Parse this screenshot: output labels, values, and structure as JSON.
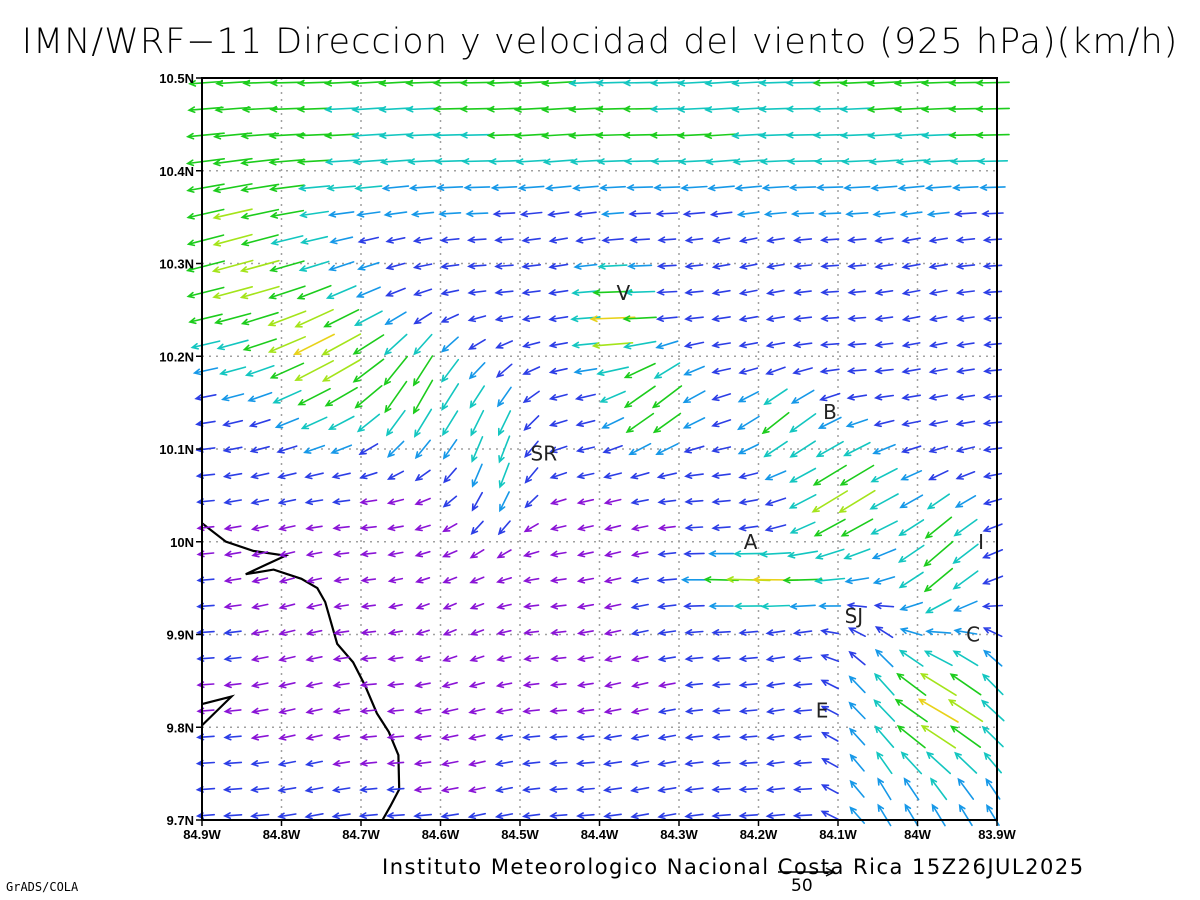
{
  "title": "IMN/WRF−11 Direccion y velocidad del viento (925 hPa)(km/h)",
  "footer": "Instituto Meteorologico Nacional Costa Rica  15Z26JUL2025",
  "software": "GrADS/COLA",
  "reference_vector": {
    "value": "50",
    "speed_kmh": 50
  },
  "map": {
    "lon_range": [
      -84.9,
      -83.9
    ],
    "lat_range": [
      9.7,
      10.5
    ],
    "x_ticks": [
      {
        "value": -84.9,
        "label": "84.9W"
      },
      {
        "value": -84.8,
        "label": "84.8W"
      },
      {
        "value": -84.7,
        "label": "84.7W"
      },
      {
        "value": -84.6,
        "label": "84.6W"
      },
      {
        "value": -84.5,
        "label": "84.5W"
      },
      {
        "value": -84.4,
        "label": "84.4W"
      },
      {
        "value": -84.3,
        "label": "84.3W"
      },
      {
        "value": -84.2,
        "label": "84.2W"
      },
      {
        "value": -84.1,
        "label": "84.1W"
      },
      {
        "value": -84.0,
        "label": "84W"
      },
      {
        "value": -83.9,
        "label": "83.9W"
      }
    ],
    "y_ticks": [
      {
        "value": 10.5,
        "label": "10.5N"
      },
      {
        "value": 10.4,
        "label": "10.4N"
      },
      {
        "value": 10.3,
        "label": "10.3N"
      },
      {
        "value": 10.2,
        "label": "10.2N"
      },
      {
        "value": 10.1,
        "label": "10.1N"
      },
      {
        "value": 10.0,
        "label": "10N"
      },
      {
        "value": 9.9,
        "label": "9.9N"
      },
      {
        "value": 9.8,
        "label": "9.8N"
      },
      {
        "value": 9.7,
        "label": "9.7N"
      }
    ],
    "grid": true,
    "places": [
      {
        "label": "V",
        "lon": -84.37,
        "lat": 10.268
      },
      {
        "label": "SR",
        "lon": -84.47,
        "lat": 10.095
      },
      {
        "label": "B",
        "lon": -84.11,
        "lat": 10.14
      },
      {
        "label": "A",
        "lon": -84.21,
        "lat": 10.0
      },
      {
        "label": "I",
        "lon": -83.92,
        "lat": 10.0
      },
      {
        "label": "SJ",
        "lon": -84.08,
        "lat": 9.92
      },
      {
        "label": "C",
        "lon": -83.93,
        "lat": 9.9
      },
      {
        "label": "E",
        "lon": -84.12,
        "lat": 9.818
      }
    ],
    "coastline": [
      [
        -84.9,
        10.02
      ],
      [
        -84.87,
        10.0
      ],
      [
        -84.835,
        9.99
      ],
      [
        -84.795,
        9.985
      ],
      [
        -84.82,
        9.975
      ],
      [
        -84.845,
        9.965
      ],
      [
        -84.81,
        9.97
      ],
      [
        -84.775,
        9.96
      ],
      [
        -84.755,
        9.95
      ],
      [
        -84.745,
        9.935
      ],
      [
        -84.735,
        9.905
      ],
      [
        -84.73,
        9.89
      ],
      [
        -84.71,
        9.87
      ],
      [
        -84.695,
        9.845
      ],
      [
        -84.68,
        9.815
      ],
      [
        -84.665,
        9.795
      ],
      [
        -84.653,
        9.77
      ],
      [
        -84.652,
        9.733
      ],
      [
        -84.663,
        9.715
      ],
      [
        -84.673,
        9.7
      ]
    ],
    "coastline2": [
      [
        -84.9,
        9.825
      ],
      [
        -84.863,
        9.833
      ],
      [
        -84.9,
        9.802
      ]
    ],
    "colors": {
      "violet": "#8a14d6",
      "blue": "#2c3ee6",
      "skyblue": "#1698e8",
      "cyan": "#13c6c0",
      "green": "#1ccc1c",
      "yellowgreen": "#a4e41a",
      "yellow": "#e8d21a",
      "orange": "#e8a01a",
      "darkorange": "#ea6a16",
      "red": "#e62050"
    }
  }
}
